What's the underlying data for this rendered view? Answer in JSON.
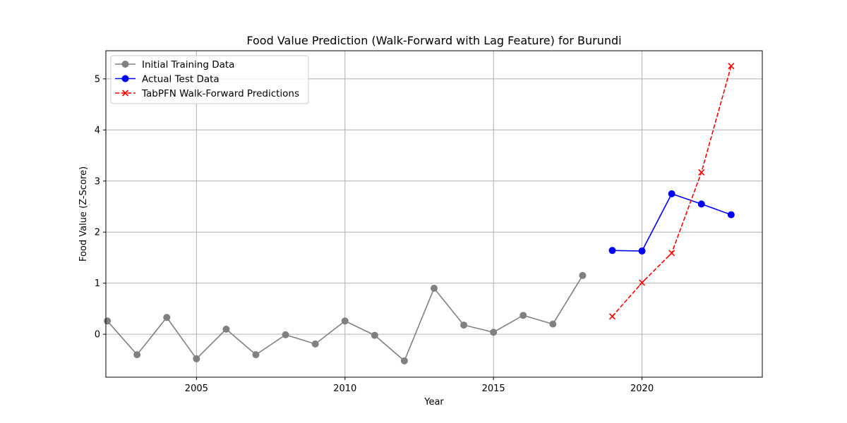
{
  "chart_data": {
    "type": "line",
    "title": "Food Value Prediction (Walk-Forward with Lag Feature) for Burundi",
    "xlabel": "Year",
    "ylabel": "Food Value (Z-Score)",
    "xlim": [
      2001.95,
      2024.05
    ],
    "ylim": [
      -0.84,
      5.55
    ],
    "xticks": [
      2005,
      2010,
      2015,
      2020
    ],
    "yticks": [
      0,
      1,
      2,
      3,
      4,
      5
    ],
    "grid": true,
    "legend_position": "top-left",
    "series": [
      {
        "name": "Initial Training Data",
        "color": "#808080",
        "line_style": "solid",
        "marker": "circle",
        "x": [
          2002,
          2003,
          2004,
          2005,
          2006,
          2007,
          2008,
          2009,
          2010,
          2011,
          2012,
          2013,
          2014,
          2015,
          2016,
          2017,
          2018
        ],
        "y": [
          0.26,
          -0.4,
          0.33,
          -0.48,
          0.1,
          -0.4,
          -0.01,
          -0.19,
          0.26,
          -0.02,
          -0.52,
          0.9,
          0.18,
          0.04,
          0.37,
          0.2,
          1.15
        ]
      },
      {
        "name": "Actual Test Data",
        "color": "#0000ff",
        "line_style": "solid",
        "marker": "circle",
        "x": [
          2019,
          2020,
          2021,
          2022,
          2023
        ],
        "y": [
          1.64,
          1.63,
          2.75,
          2.55,
          2.34
        ]
      },
      {
        "name": "TabPFN Walk-Forward Predictions",
        "color": "#ff0000",
        "line_style": "dashed",
        "marker": "x",
        "x": [
          2019,
          2020,
          2021,
          2022,
          2023
        ],
        "y": [
          0.35,
          1.01,
          1.59,
          3.17,
          5.25
        ]
      }
    ]
  }
}
